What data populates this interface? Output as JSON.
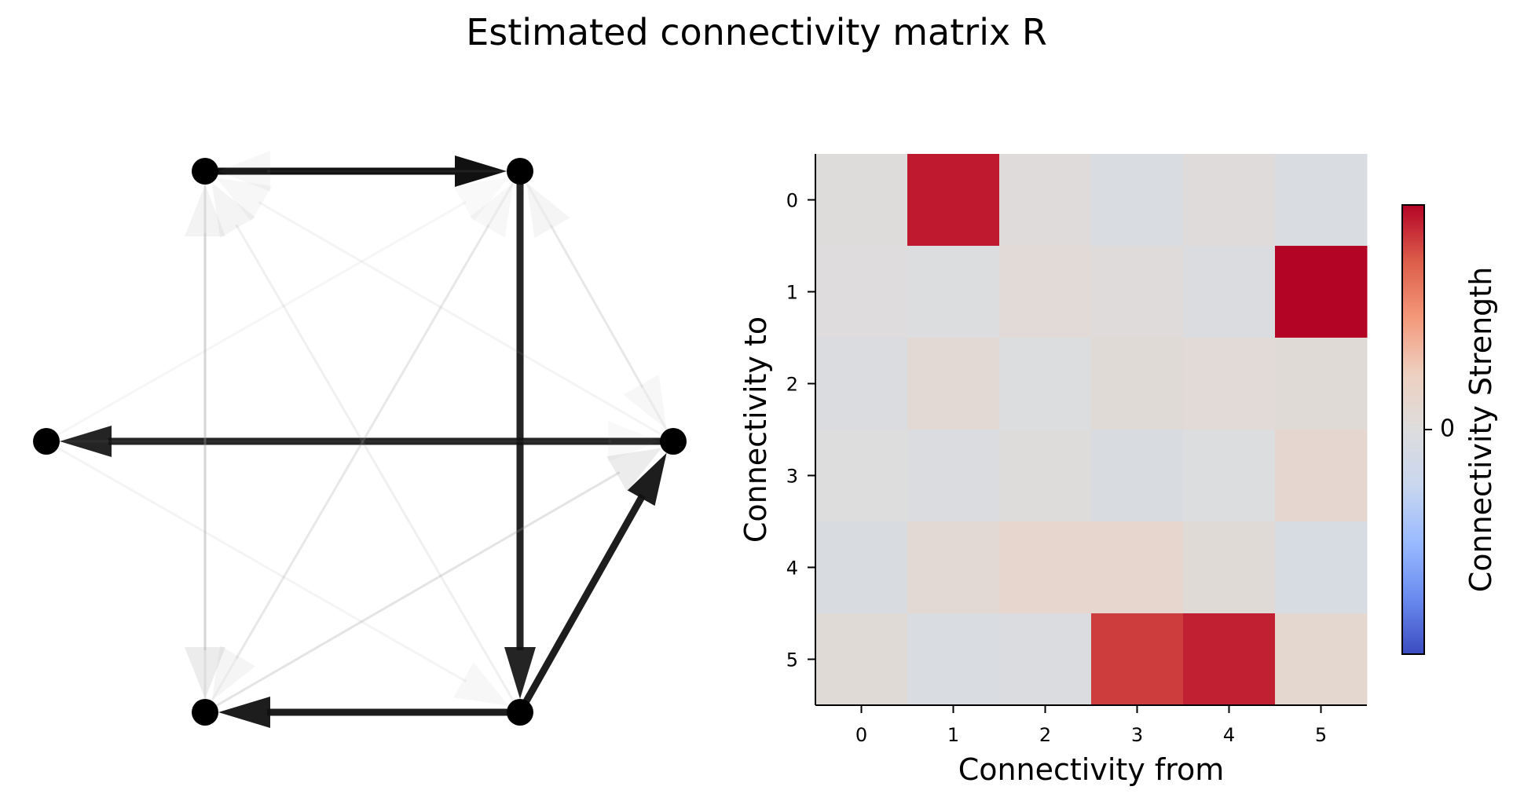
{
  "title": "Estimated connectivity matrix R",
  "graph": {
    "nodes": [
      0,
      1,
      2,
      3,
      4,
      5
    ],
    "edges": [
      {
        "from": 0,
        "to": 1,
        "alpha": 1.0
      },
      {
        "from": 5,
        "to": 3,
        "alpha": 0.95
      },
      {
        "from": 1,
        "to": 5,
        "alpha": 0.92
      },
      {
        "from": 5,
        "to": 4,
        "alpha": 0.95
      },
      {
        "from": 3,
        "to": 2,
        "alpha": 0.92
      },
      {
        "from": 1,
        "to": 4,
        "alpha": 0.06
      },
      {
        "from": 2,
        "to": 5,
        "alpha": 0.05
      },
      {
        "from": 4,
        "to": 1,
        "alpha": 0.05
      },
      {
        "from": 5,
        "to": 0,
        "alpha": 0.07
      },
      {
        "from": 3,
        "to": 1,
        "alpha": 0.06
      },
      {
        "from": 4,
        "to": 0,
        "alpha": 0.08
      },
      {
        "from": 4,
        "to": 3,
        "alpha": 0.12
      },
      {
        "from": 0,
        "to": 4,
        "alpha": 0.12
      },
      {
        "from": 1,
        "to": 3,
        "alpha": 0.05
      },
      {
        "from": 2,
        "to": 1,
        "alpha": 0.04
      },
      {
        "from": 3,
        "to": 0,
        "alpha": 0.05
      },
      {
        "from": 2,
        "to": 3,
        "alpha": 0.04
      },
      {
        "from": 1,
        "to": 0,
        "alpha": 0.05
      }
    ]
  },
  "chart_data": {
    "type": "heatmap",
    "xlabel": "Connectivity from",
    "ylabel": "Connectivity to",
    "x_ticks": [
      "0",
      "1",
      "2",
      "3",
      "4",
      "5"
    ],
    "y_ticks": [
      "0",
      "1",
      "2",
      "3",
      "4",
      "5"
    ],
    "colorbar_label": "Connectivity Strength",
    "colorbar_ticks": [
      "0"
    ],
    "colormap": "coolwarm",
    "value_range": [
      -1,
      1
    ],
    "matrix": [
      [
        0.02,
        0.94,
        0.03,
        -0.05,
        0.03,
        -0.05
      ],
      [
        0.01,
        -0.02,
        0.06,
        0.03,
        -0.03,
        1.0
      ],
      [
        -0.04,
        0.08,
        -0.01,
        0.05,
        0.06,
        0.05
      ],
      [
        0.0,
        -0.03,
        0.02,
        -0.06,
        -0.02,
        0.12
      ],
      [
        -0.06,
        0.07,
        0.13,
        0.13,
        0.05,
        -0.07
      ],
      [
        0.05,
        -0.05,
        -0.04,
        0.84,
        0.92,
        0.11
      ]
    ],
    "colors": {
      "zero": "#dddddd",
      "cmap_stops": [
        "#3b4cc0",
        "#6a8bef",
        "#9abbff",
        "#c9d7ef",
        "#dddddd",
        "#eed0c0",
        "#f4987a",
        "#dc5d4a",
        "#b40426"
      ]
    }
  }
}
